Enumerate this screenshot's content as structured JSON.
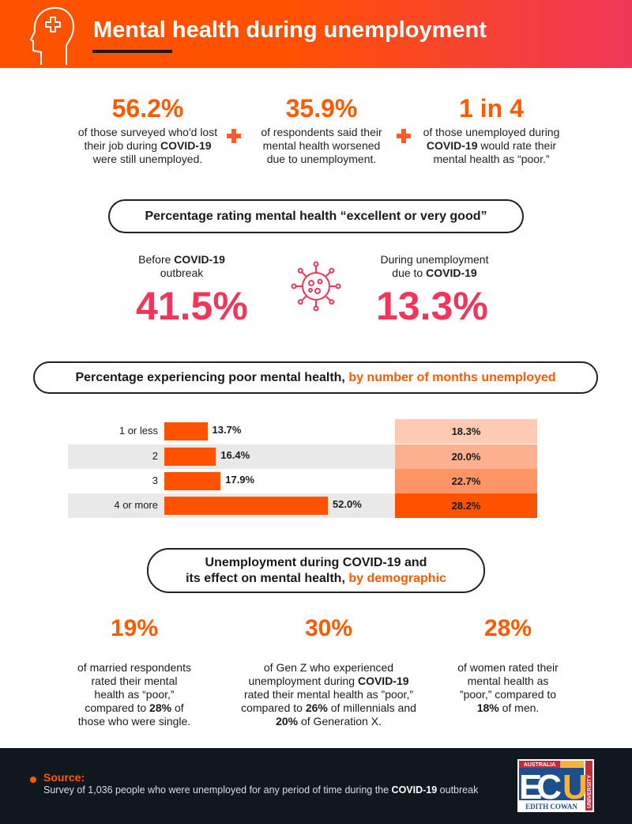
{
  "header": {
    "title": "Mental health during unemployment",
    "icon": "head-medical-cross-icon"
  },
  "stats": [
    {
      "value": "56.2%",
      "lines": [
        "of those surveyed who'd lost",
        "their job during ",
        "were still unemployed."
      ],
      "bold": "COVID-19"
    },
    {
      "value": "35.9%",
      "lines": [
        "of respondents said their",
        "mental health worsened",
        "due to unemployment."
      ]
    },
    {
      "value": "1 in 4",
      "lines": [
        "of those unemployed during",
        " would rate their",
        "mental health as “poor.”"
      ],
      "bold": "COVID-19"
    }
  ],
  "rating": {
    "heading": "Percentage rating mental health “excellent or very good”",
    "before": {
      "text": "Before ",
      "bold": "COVID-19",
      "text2": "outbreak",
      "value": "41.5%"
    },
    "during": {
      "text": "During unemployment",
      "text2": "due to ",
      "bold": "COVID-19",
      "value": "13.3%"
    }
  },
  "poor": {
    "heading": "Percentage experiencing poor mental health, ",
    "heading_accent": "by number of months unemployed"
  },
  "chart_data": {
    "type": "bar",
    "orientation": "horizontal",
    "categories": [
      "1 or less",
      "2",
      "3",
      "4 or more"
    ],
    "series": [
      {
        "values": [
          13.7,
          16.4,
          17.9,
          52.0
        ],
        "labels": [
          "13.7%",
          "16.4%",
          "17.9%",
          "52.0%"
        ],
        "color": "#ff5200"
      },
      {
        "values": [
          18.3,
          20.0,
          22.7,
          28.2
        ],
        "labels": [
          "18.3%",
          "20.0%",
          "22.7%",
          "28.2%"
        ],
        "colors": [
          "#ffcab3",
          "#ffb08f",
          "#ff9566",
          "#ff5200"
        ]
      }
    ]
  },
  "demographic": {
    "heading1": "Unemployment during COVID-19 and",
    "heading2": "its effect on mental health, ",
    "heading_accent": "by demographic",
    "items": [
      {
        "value": "19%",
        "html": "of married respondents<br>rated their mental<br>health as “poor,”<br>compared to <b>28%</b> of<br>those who were single."
      },
      {
        "value": "30%",
        "html": "of Gen Z who experienced<br>unemployment during <b>COVID-19</b><br>rated their mental health as ”poor,”<br>compared to <b>26%</b> of millennials and<br><b>20%</b> of Generation X."
      },
      {
        "value": "28%",
        "html": "of women rated their<br>mental health as<br>”poor,” compared to<br><b>18%</b> of men."
      }
    ]
  },
  "footer": {
    "source_label": "Source:",
    "source_text": "Survey of 1,036 people who were unemployed for any period of time during the ",
    "source_bold": "COVID-19",
    "source_end": " outbreak",
    "logo": {
      "top": "AUSTRALIA",
      "letters": "ECU",
      "side": "UNIVERSITY",
      "bottom": "EDITH COWAN"
    }
  },
  "colors": {
    "orange": "#ff5200",
    "pink": "#f0365a",
    "dark": "#10171f"
  }
}
